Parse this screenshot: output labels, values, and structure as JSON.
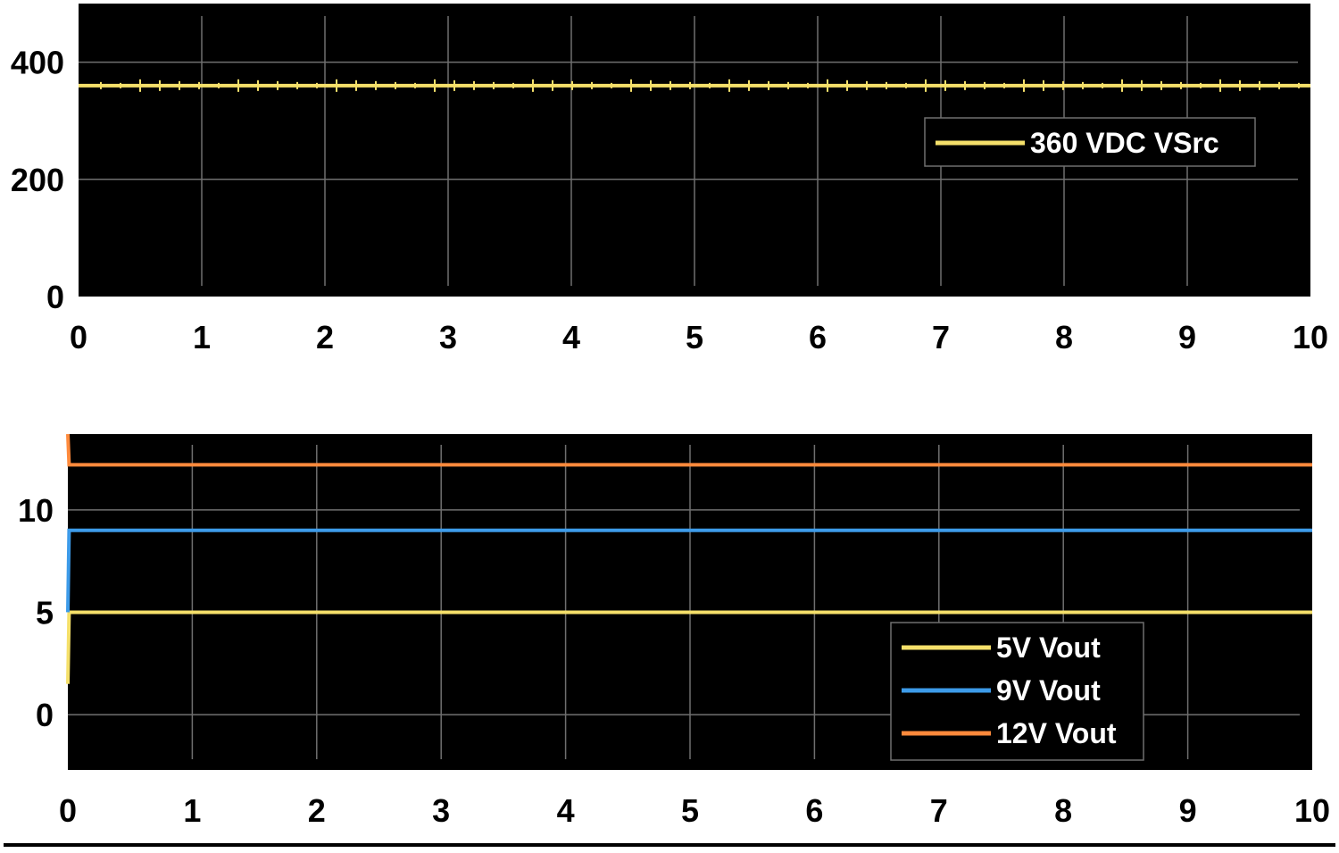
{
  "chart_data": [
    {
      "type": "line",
      "title": "",
      "xlabel": "",
      "ylabel": "",
      "xlim": [
        0,
        10
      ],
      "ylim": [
        0,
        500
      ],
      "xticks": [
        0,
        1,
        2,
        3,
        4,
        5,
        6,
        7,
        8,
        9,
        10
      ],
      "yticks": [
        0,
        200,
        400
      ],
      "grid": true,
      "background": "#000000",
      "legend_position": "top-right",
      "series": [
        {
          "name": "360 VDC VSrc",
          "color": "#f5e06a",
          "x": [
            0,
            10
          ],
          "y": [
            360,
            360
          ]
        }
      ]
    },
    {
      "type": "line",
      "title": "",
      "xlabel": "",
      "ylabel": "",
      "xlim": [
        0,
        10
      ],
      "ylim": [
        -2.7,
        13.7
      ],
      "xticks": [
        0,
        1,
        2,
        3,
        4,
        5,
        6,
        7,
        8,
        9,
        10
      ],
      "yticks": [
        0,
        5,
        10
      ],
      "grid": true,
      "background": "#000000",
      "legend_position": "bottom-right",
      "series": [
        {
          "name": "5V Vout",
          "color": "#f5e06a",
          "x": [
            0,
            0.01,
            10
          ],
          "y": [
            1.5,
            5,
            5
          ]
        },
        {
          "name": "9V Vout",
          "color": "#3d9be9",
          "x": [
            0,
            0.01,
            10
          ],
          "y": [
            5,
            9,
            9
          ]
        },
        {
          "name": "12V Vout",
          "color": "#ff8a3c",
          "x": [
            0,
            0.01,
            10
          ],
          "y": [
            13.7,
            12.2,
            12.2
          ]
        }
      ]
    }
  ]
}
